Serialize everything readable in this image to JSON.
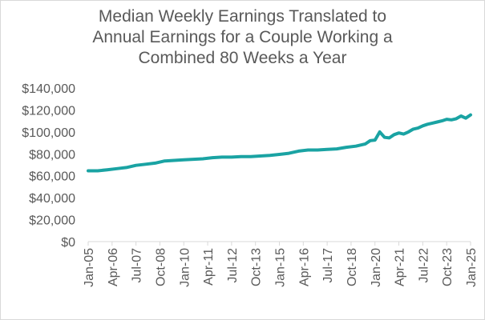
{
  "chart_data": {
    "type": "line",
    "title_lines": [
      "Median Weekly Earnings Translated to",
      "Annual Earnings for a Couple Working a",
      "Combined 80 Weeks a Year"
    ],
    "xlabel": "",
    "ylabel": "",
    "ylim": [
      0,
      140000
    ],
    "y_ticks": [
      0,
      20000,
      40000,
      60000,
      80000,
      100000,
      120000,
      140000
    ],
    "y_tick_labels": [
      "$0",
      "$20,000",
      "$40,000",
      "$60,000",
      "$80,000",
      "$100,000",
      "$120,000",
      "$140,000"
    ],
    "x_tick_labels": [
      "Jan-05",
      "Apr-06",
      "Jul-07",
      "Oct-08",
      "Jan-10",
      "Apr-11",
      "Jul-12",
      "Oct-13",
      "Jan-15",
      "Apr-16",
      "Jul-17",
      "Oct-18",
      "Jan-20",
      "Apr-21",
      "Jul-22",
      "Oct-23",
      "Jan-25"
    ],
    "grid": false,
    "legend": "none",
    "line_color": "#1aa3a3",
    "series": [
      {
        "x": [
          "Jan-05",
          "Jul-05",
          "Jan-06",
          "Jul-06",
          "Jan-07",
          "Jul-07",
          "Jan-08",
          "Jul-08",
          "Jan-09",
          "Jul-09",
          "Jan-10",
          "Jul-10",
          "Jan-11",
          "Jul-11",
          "Jan-12",
          "Jul-12",
          "Jan-13",
          "Jul-13",
          "Jan-14",
          "Jul-14",
          "Jan-15",
          "Jul-15",
          "Jan-16",
          "Jul-16",
          "Jan-17",
          "Jul-17",
          "Jan-18",
          "Jul-18",
          "Jan-19",
          "Jul-19",
          "Oct-19",
          "Jan-20",
          "Apr-20",
          "Jul-20",
          "Oct-20",
          "Jan-21",
          "Apr-21",
          "Jul-21",
          "Oct-21",
          "Jan-22",
          "Apr-22",
          "Jul-22",
          "Oct-22",
          "Jan-23",
          "Apr-23",
          "Jul-23",
          "Oct-23",
          "Jan-24",
          "Apr-24",
          "Jul-24",
          "Oct-24",
          "Jan-25"
        ],
        "values": [
          64500,
          64500,
          65500,
          66500,
          67500,
          69500,
          70500,
          71500,
          73500,
          74000,
          74500,
          75000,
          75500,
          76500,
          77000,
          77000,
          77500,
          77500,
          78000,
          78500,
          79500,
          80500,
          82500,
          83500,
          83500,
          84000,
          84500,
          86000,
          87000,
          89000,
          92000,
          92500,
          100000,
          95000,
          94500,
          97500,
          99000,
          98000,
          100000,
          102500,
          103500,
          105500,
          107000,
          108000,
          109000,
          110000,
          111500,
          111000,
          112000,
          114500,
          112500,
          115500
        ]
      }
    ]
  }
}
